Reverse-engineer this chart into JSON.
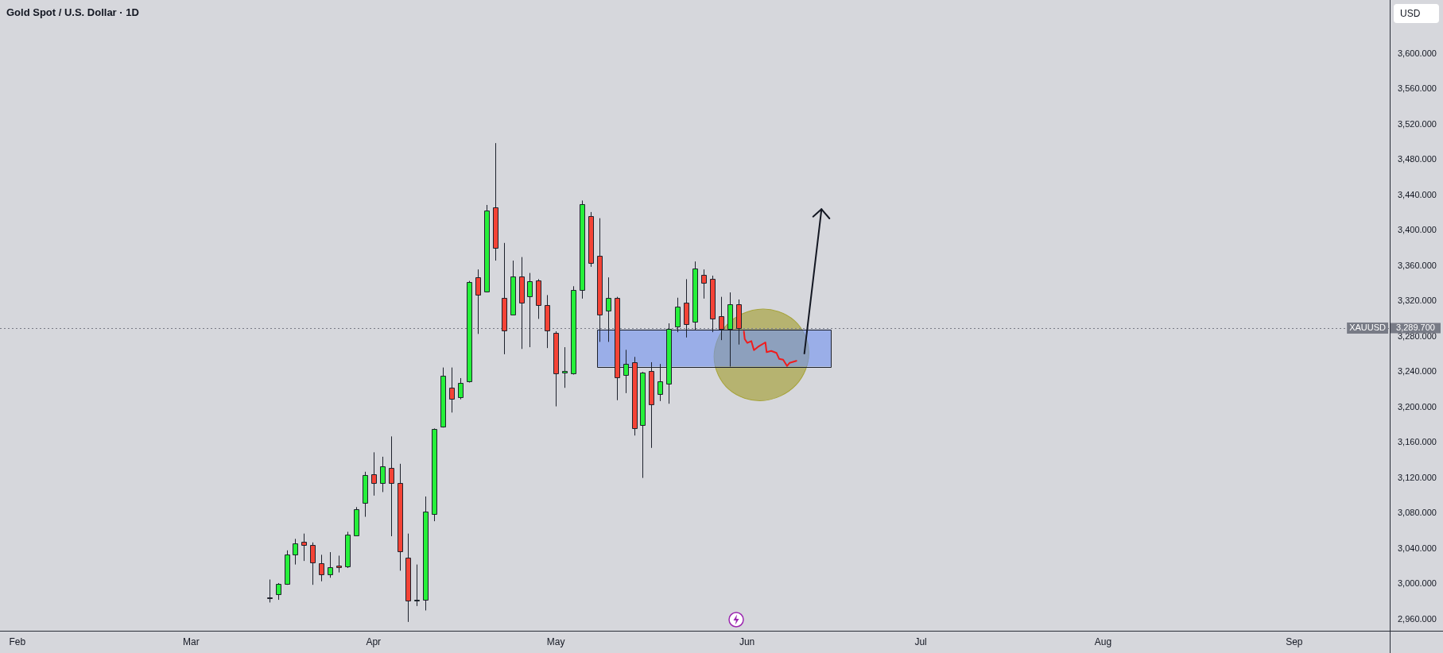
{
  "chart_data": {
    "type": "candlestick",
    "title": "Gold Spot / U.S. Dollar · 1D",
    "ylabel": "USD",
    "categories": [
      null,
      null,
      "Feb",
      null,
      null,
      null,
      null,
      null,
      null,
      null,
      null,
      null,
      null,
      null,
      null,
      null,
      null,
      null,
      null,
      null,
      null,
      null,
      "Mar",
      null,
      null,
      null,
      null,
      null,
      null,
      null,
      null,
      null,
      null,
      null,
      null,
      null,
      null,
      null,
      null,
      null,
      null,
      null,
      null,
      "Apr",
      null,
      null,
      null,
      null,
      null,
      null,
      null,
      null,
      null,
      null,
      null,
      null,
      null,
      null,
      null,
      null,
      null,
      null,
      null,
      null,
      "May",
      null,
      null,
      null,
      null,
      null,
      null,
      null,
      null,
      null,
      null,
      null,
      null,
      null,
      null,
      null,
      null,
      null,
      null,
      null,
      null,
      null,
      "Jun",
      null,
      null,
      null,
      null,
      null,
      null,
      null,
      null,
      null,
      null,
      null,
      null,
      null,
      null,
      null,
      null,
      null,
      null,
      null,
      "Jul",
      null,
      null,
      null,
      null,
      null,
      null,
      null,
      null,
      null,
      null,
      null,
      null,
      null,
      null,
      null,
      null,
      null,
      null,
      null,
      null,
      "Aug",
      null,
      null,
      null,
      null,
      null,
      null,
      null,
      null,
      null,
      null,
      null,
      null,
      null,
      null,
      null,
      null,
      null,
      null,
      null,
      null,
      null,
      "Sep",
      null,
      null,
      null,
      null,
      null,
      null,
      null,
      null,
      null,
      null,
      null
    ],
    "ohlc": [
      null,
      null,
      null,
      null,
      null,
      null,
      null,
      null,
      null,
      null,
      null,
      null,
      null,
      null,
      null,
      null,
      null,
      null,
      null,
      null,
      null,
      null,
      null,
      null,
      null,
      null,
      null,
      null,
      null,
      null,
      null,
      [
        2985,
        3005,
        2979,
        2984
      ],
      [
        2988,
        3001,
        2982,
        3000
      ],
      [
        3000,
        3038,
        2999,
        3033
      ],
      [
        3033,
        3051,
        3022,
        3046
      ],
      [
        3048,
        3057,
        3026,
        3044
      ],
      [
        3044,
        3047,
        2999,
        3024
      ],
      [
        3023,
        3033,
        3003,
        3011
      ],
      [
        3011,
        3036,
        3007,
        3019
      ],
      [
        3021,
        3032,
        3013,
        3019
      ],
      [
        3020,
        3059,
        3018,
        3056
      ],
      [
        3055,
        3087,
        3054,
        3085
      ],
      [
        3092,
        3127,
        3076,
        3123
      ],
      [
        3124,
        3149,
        3100,
        3114
      ],
      [
        3114,
        3144,
        3104,
        3133
      ],
      [
        3131,
        3167,
        3054,
        3114
      ],
      [
        3114,
        3136,
        3015,
        3037
      ],
      [
        3030,
        3057,
        2957,
        2981
      ],
      [
        2981,
        3022,
        2975,
        2982
      ],
      [
        2982,
        3099,
        2970,
        3082
      ],
      [
        3079,
        3176,
        3071,
        3175
      ],
      [
        3178,
        3245,
        3177,
        3236
      ],
      [
        3222,
        3245,
        3194,
        3210
      ],
      [
        3211,
        3233,
        3209,
        3228
      ],
      [
        3229,
        3343,
        3228,
        3342
      ],
      [
        3347,
        3356,
        3283,
        3327
      ],
      [
        3331,
        3429,
        3330,
        3423
      ],
      [
        3426,
        3499,
        3366,
        3380
      ],
      [
        3324,
        3386,
        3260,
        3287
      ],
      [
        3305,
        3366,
        3304,
        3348
      ],
      [
        3348,
        3370,
        3266,
        3318
      ],
      [
        3326,
        3352,
        3268,
        3343
      ],
      [
        3344,
        3345,
        3300,
        3316
      ],
      [
        3316,
        3327,
        3267,
        3287
      ],
      [
        3284,
        3286,
        3201,
        3238
      ],
      [
        3239,
        3268,
        3222,
        3241
      ],
      [
        3238,
        3337,
        3237,
        3333
      ],
      [
        3333,
        3434,
        3323,
        3430
      ],
      [
        3416,
        3421,
        3359,
        3363
      ],
      [
        3371,
        3414,
        3274,
        3305
      ],
      [
        3309,
        3347,
        3274,
        3324
      ],
      [
        3324,
        3325,
        3208,
        3234
      ],
      [
        3237,
        3265,
        3216,
        3249
      ],
      [
        3251,
        3257,
        3168,
        3176
      ],
      [
        3180,
        3240,
        3120,
        3239
      ],
      [
        3241,
        3251,
        3154,
        3203
      ],
      [
        3215,
        3249,
        3207,
        3229
      ],
      [
        3227,
        3295,
        3204,
        3289
      ],
      [
        3291,
        3324,
        3285,
        3314
      ],
      [
        3318,
        3345,
        3279,
        3294
      ],
      [
        3297,
        3365,
        3287,
        3357
      ],
      [
        3350,
        3356,
        3323,
        3341
      ],
      [
        3345,
        3349,
        3285,
        3300
      ],
      [
        3303,
        3325,
        3276,
        3289
      ],
      [
        3289,
        3330,
        3246,
        3317
      ],
      [
        3317,
        3322,
        3271,
        3289.7
      ],
      null,
      null,
      null,
      null,
      null,
      null,
      null,
      null,
      null,
      null,
      null,
      null,
      null,
      null,
      null,
      null,
      null,
      null,
      null,
      null,
      null,
      null,
      null,
      null,
      null,
      null,
      null,
      null,
      null,
      null,
      null,
      null,
      null,
      null,
      null,
      null,
      null,
      null,
      null,
      null,
      null,
      null,
      null,
      null,
      null,
      null,
      null,
      null,
      null,
      null,
      null,
      null,
      null,
      null,
      null,
      null,
      null,
      null,
      null,
      null,
      null,
      null,
      null,
      null,
      null,
      null,
      null,
      null,
      null,
      null,
      null,
      null,
      null,
      null,
      null
    ],
    "colors": [
      null,
      null,
      null,
      null,
      null,
      null,
      null,
      null,
      null,
      null,
      null,
      null,
      null,
      null,
      null,
      null,
      null,
      null,
      null,
      null,
      null,
      null,
      null,
      null,
      null,
      null,
      null,
      null,
      null,
      null,
      null,
      "#f44336",
      "#26f03a",
      "#26f03a",
      "#26f03a",
      "#f44336",
      "#f44336",
      "#f44336",
      "#26f03a",
      "#f44336",
      "#26f03a",
      "#26f03a",
      "#26f03a",
      "#f44336",
      "#26f03a",
      "#f44336",
      "#f44336",
      "#f44336",
      "#26f03a",
      "#26f03a",
      "#26f03a",
      "#26f03a",
      "#f44336",
      "#26f03a",
      "#26f03a",
      "#f44336",
      "#26f03a",
      "#f44336",
      "#f44336",
      "#26f03a",
      "#f44336",
      "#26f03a",
      "#f44336",
      "#f44336",
      "#f44336",
      "#26f03a",
      "#26f03a",
      "#26f03a",
      "#f44336",
      "#f44336",
      "#26f03a",
      "#f44336",
      "#26f03a",
      "#f44336",
      "#26f03a",
      "#f44336",
      "#26f03a",
      "#26f03a",
      "#26f03a",
      "#f44336",
      "#26f03a",
      "#f44336",
      "#f44336",
      "#f44336",
      "#26f03a",
      "#f44336",
      null,
      null,
      null,
      null,
      null,
      null,
      null,
      null,
      null,
      null,
      null,
      null,
      null,
      null,
      null,
      null,
      null,
      null,
      null,
      null,
      null,
      null,
      null,
      null,
      null,
      null,
      null,
      null,
      null,
      null,
      null,
      null,
      null,
      null,
      null,
      null,
      null,
      null,
      null,
      null,
      null,
      null,
      null,
      null,
      null,
      null,
      null,
      null,
      null,
      null,
      null,
      null,
      null,
      null,
      null,
      null,
      null,
      null,
      null,
      null,
      null,
      null,
      null,
      null,
      null,
      null,
      null,
      null,
      null,
      null,
      null,
      null,
      null,
      null,
      null
    ],
    "ylim": [
      2947,
      3661
    ],
    "yticks": [
      {
        "value": 2960,
        "label": "2,960.000"
      },
      {
        "value": 3000,
        "label": "3,000.000"
      },
      {
        "value": 3040,
        "label": "3,040.000"
      },
      {
        "value": 3080,
        "label": "3,080.000"
      },
      {
        "value": 3120,
        "label": "3,120.000"
      },
      {
        "value": 3160,
        "label": "3,160.000"
      },
      {
        "value": 3200,
        "label": "3,200.000"
      },
      {
        "value": 3240,
        "label": "3,240.000"
      },
      {
        "value": 3280,
        "label": "3,280.000"
      },
      {
        "value": 3320,
        "label": "3,320.000"
      },
      {
        "value": 3360,
        "label": "3,360.000"
      },
      {
        "value": 3400,
        "label": "3,400.000"
      },
      {
        "value": 3440,
        "label": "3,440.000"
      },
      {
        "value": 3480,
        "label": "3,480.000"
      },
      {
        "value": 3520,
        "label": "3,520.000"
      },
      {
        "value": 3560,
        "label": "3,560.000"
      },
      {
        "value": 3600,
        "label": "3,600.000"
      }
    ],
    "ref_lines": [
      {
        "axis": "y",
        "value": 3289.7,
        "label": "XAUUSD",
        "color": "#787b86",
        "line_style": "dotted"
      }
    ],
    "bands": [
      {
        "axis": "y",
        "from": 3246,
        "to": 3288,
        "color": "#9aaee8"
      }
    ],
    "annotations": [
      "3,289.700"
    ]
  }
}
